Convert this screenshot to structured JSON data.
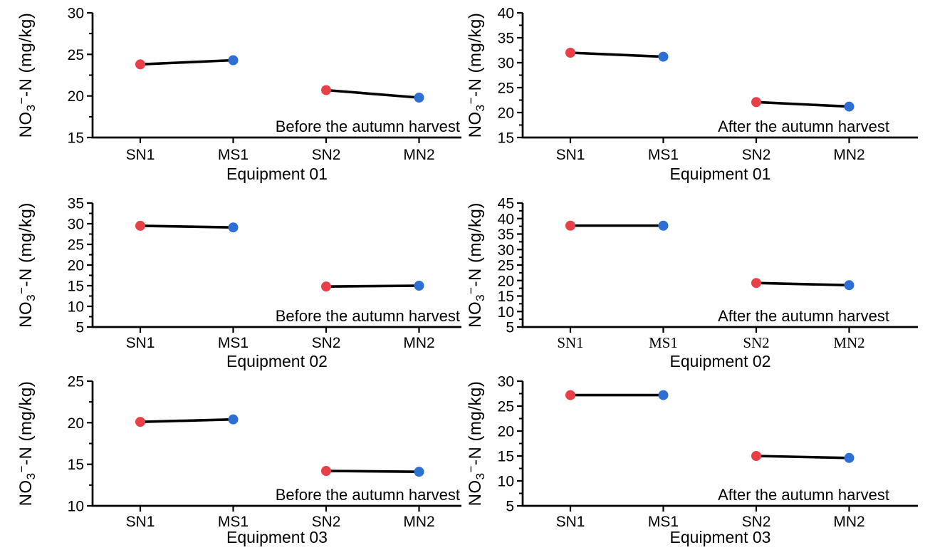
{
  "figure": {
    "background": "#ffffff",
    "grid_rows": 3,
    "grid_cols": 2
  },
  "colors": {
    "red_point": "#E84049",
    "blue_point": "#2D6FD2",
    "line": "#000000",
    "axis": "#000000",
    "text": "#000000"
  },
  "ylabel_parts": {
    "prefix": "NO",
    "sub": "3",
    "sup": "−",
    "suffix": "-N (mg/kg)",
    "plain": "NO3⁻-N (mg/kg)"
  },
  "chart_data": [
    {
      "type": "line",
      "title": "Equipment 01",
      "annotation": "Before the autumn harvest",
      "ylabel": "NO3⁻-N (mg/kg)",
      "ylim": [
        15,
        30
      ],
      "ytick_step": 5,
      "yminor_step": 2.5,
      "grid": false,
      "legend": "none",
      "categories": [
        "SN1",
        "MS1",
        "SN2",
        "MN2"
      ],
      "xtick_font": "sans",
      "series": [
        {
          "name": "SN1-MS1",
          "categories": [
            "SN1",
            "MS1"
          ],
          "values": [
            23.8,
            24.3
          ]
        },
        {
          "name": "SN2-MN2",
          "categories": [
            "SN2",
            "MN2"
          ],
          "values": [
            20.7,
            19.8
          ]
        }
      ]
    },
    {
      "type": "line",
      "title": "Equipment 01",
      "annotation": "After the autumn harvest",
      "ylabel": "NO3⁻-N (mg/kg)",
      "ylim": [
        15,
        40
      ],
      "ytick_step": 5,
      "yminor_step": 2.5,
      "grid": false,
      "legend": "none",
      "categories": [
        "SN1",
        "MS1",
        "SN2",
        "MN2"
      ],
      "xtick_font": "sans",
      "series": [
        {
          "name": "SN1-MS1",
          "categories": [
            "SN1",
            "MS1"
          ],
          "values": [
            32.0,
            31.2
          ]
        },
        {
          "name": "SN2-MN2",
          "categories": [
            "SN2",
            "MN2"
          ],
          "values": [
            22.1,
            21.2
          ]
        }
      ]
    },
    {
      "type": "line",
      "title": "Equipment 02",
      "annotation": "Before the autumn harvest",
      "ylabel": "NO3⁻-N (mg/kg)",
      "ylim": [
        5,
        35
      ],
      "ytick_step": 5,
      "yminor_step": 2.5,
      "grid": false,
      "legend": "none",
      "categories": [
        "SN1",
        "MS1",
        "SN2",
        "MN2"
      ],
      "xtick_font": "sans",
      "series": [
        {
          "name": "SN1-MS1",
          "categories": [
            "SN1",
            "MS1"
          ],
          "values": [
            29.5,
            29.1
          ]
        },
        {
          "name": "SN2-MN2",
          "categories": [
            "SN2",
            "MN2"
          ],
          "values": [
            14.8,
            15.0
          ]
        }
      ]
    },
    {
      "type": "line",
      "title": "Equipment 02",
      "annotation": "After the autumn harvest",
      "ylabel": "NO3⁻-N (mg/kg)",
      "ylim": [
        5,
        45
      ],
      "ytick_step": 5,
      "yminor_step": 2.5,
      "grid": false,
      "legend": "none",
      "categories": [
        "SN1",
        "MS1",
        "SN2",
        "MN2"
      ],
      "xtick_font": "serif",
      "series": [
        {
          "name": "SN1-MS1",
          "categories": [
            "SN1",
            "MS1"
          ],
          "values": [
            37.7,
            37.7
          ]
        },
        {
          "name": "SN2-MN2",
          "categories": [
            "SN2",
            "MN2"
          ],
          "values": [
            19.2,
            18.5
          ]
        }
      ]
    },
    {
      "type": "line",
      "title": "Equipment 03",
      "annotation": "Before the autumn harvest",
      "ylabel": "NO3⁻-N (mg/kg)",
      "ylim": [
        10,
        25
      ],
      "ytick_step": 5,
      "yminor_step": 2.5,
      "grid": false,
      "legend": "none",
      "categories": [
        "SN1",
        "MS1",
        "SN2",
        "MN2"
      ],
      "xtick_font": "sans",
      "series": [
        {
          "name": "SN1-MS1",
          "categories": [
            "SN1",
            "MS1"
          ],
          "values": [
            20.1,
            20.4
          ]
        },
        {
          "name": "SN2-MN2",
          "categories": [
            "SN2",
            "MN2"
          ],
          "values": [
            14.2,
            14.1
          ]
        }
      ]
    },
    {
      "type": "line",
      "title": "Equipment 03",
      "annotation": "After the autumn harvest",
      "ylabel": "NO3⁻-N (mg/kg)",
      "ylim": [
        5,
        30
      ],
      "ytick_step": 5,
      "yminor_step": 2.5,
      "grid": false,
      "legend": "none",
      "categories": [
        "SN1",
        "MS1",
        "SN2",
        "MN2"
      ],
      "xtick_font": "sans",
      "series": [
        {
          "name": "SN1-MS1",
          "categories": [
            "SN1",
            "MS1"
          ],
          "values": [
            27.2,
            27.2
          ]
        },
        {
          "name": "SN2-MN2",
          "categories": [
            "SN2",
            "MN2"
          ],
          "values": [
            15.0,
            14.6
          ]
        }
      ]
    }
  ]
}
